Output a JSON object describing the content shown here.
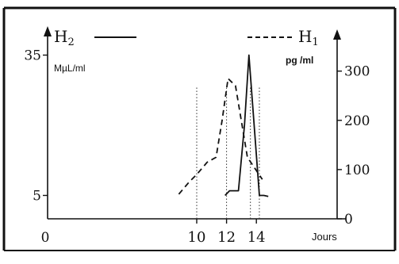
{
  "chart_data": {
    "type": "line",
    "title": "",
    "xlabel": "Jours",
    "x_origin_label": "0",
    "x_ticks": [
      10,
      12,
      14
    ],
    "xlim": [
      0,
      20
    ],
    "left_axis": {
      "name": "H2",
      "name_base": "H",
      "name_sub": "2",
      "unit": "MµL/ml",
      "ticks": [
        5,
        35
      ],
      "ylim": [
        0,
        40
      ]
    },
    "right_axis": {
      "name": "H1",
      "name_base": "H",
      "name_sub": "1",
      "unit": "pg /ml",
      "ticks": [
        0,
        100,
        200,
        300
      ],
      "ylim": [
        0,
        380
      ]
    },
    "vertical_guides": [
      10,
      12,
      13.6,
      14.2
    ],
    "series": [
      {
        "name": "H1",
        "axis": "right",
        "style": "dashed",
        "x": [
          8.8,
          9.5,
          10,
          10.7,
          11.3,
          11.7,
          12.1,
          12.6,
          13.4,
          14.4
        ],
        "y": [
          50,
          75,
          90,
          115,
          125,
          200,
          285,
          270,
          125,
          80
        ]
      },
      {
        "name": "H2",
        "axis": "left",
        "style": "solid",
        "x": [
          11.9,
          12.2,
          12.8,
          13.2,
          13.5,
          14.2,
          14.5,
          14.8
        ],
        "y": [
          5,
          6,
          6,
          20,
          35,
          5,
          5,
          4.8
        ]
      }
    ]
  }
}
